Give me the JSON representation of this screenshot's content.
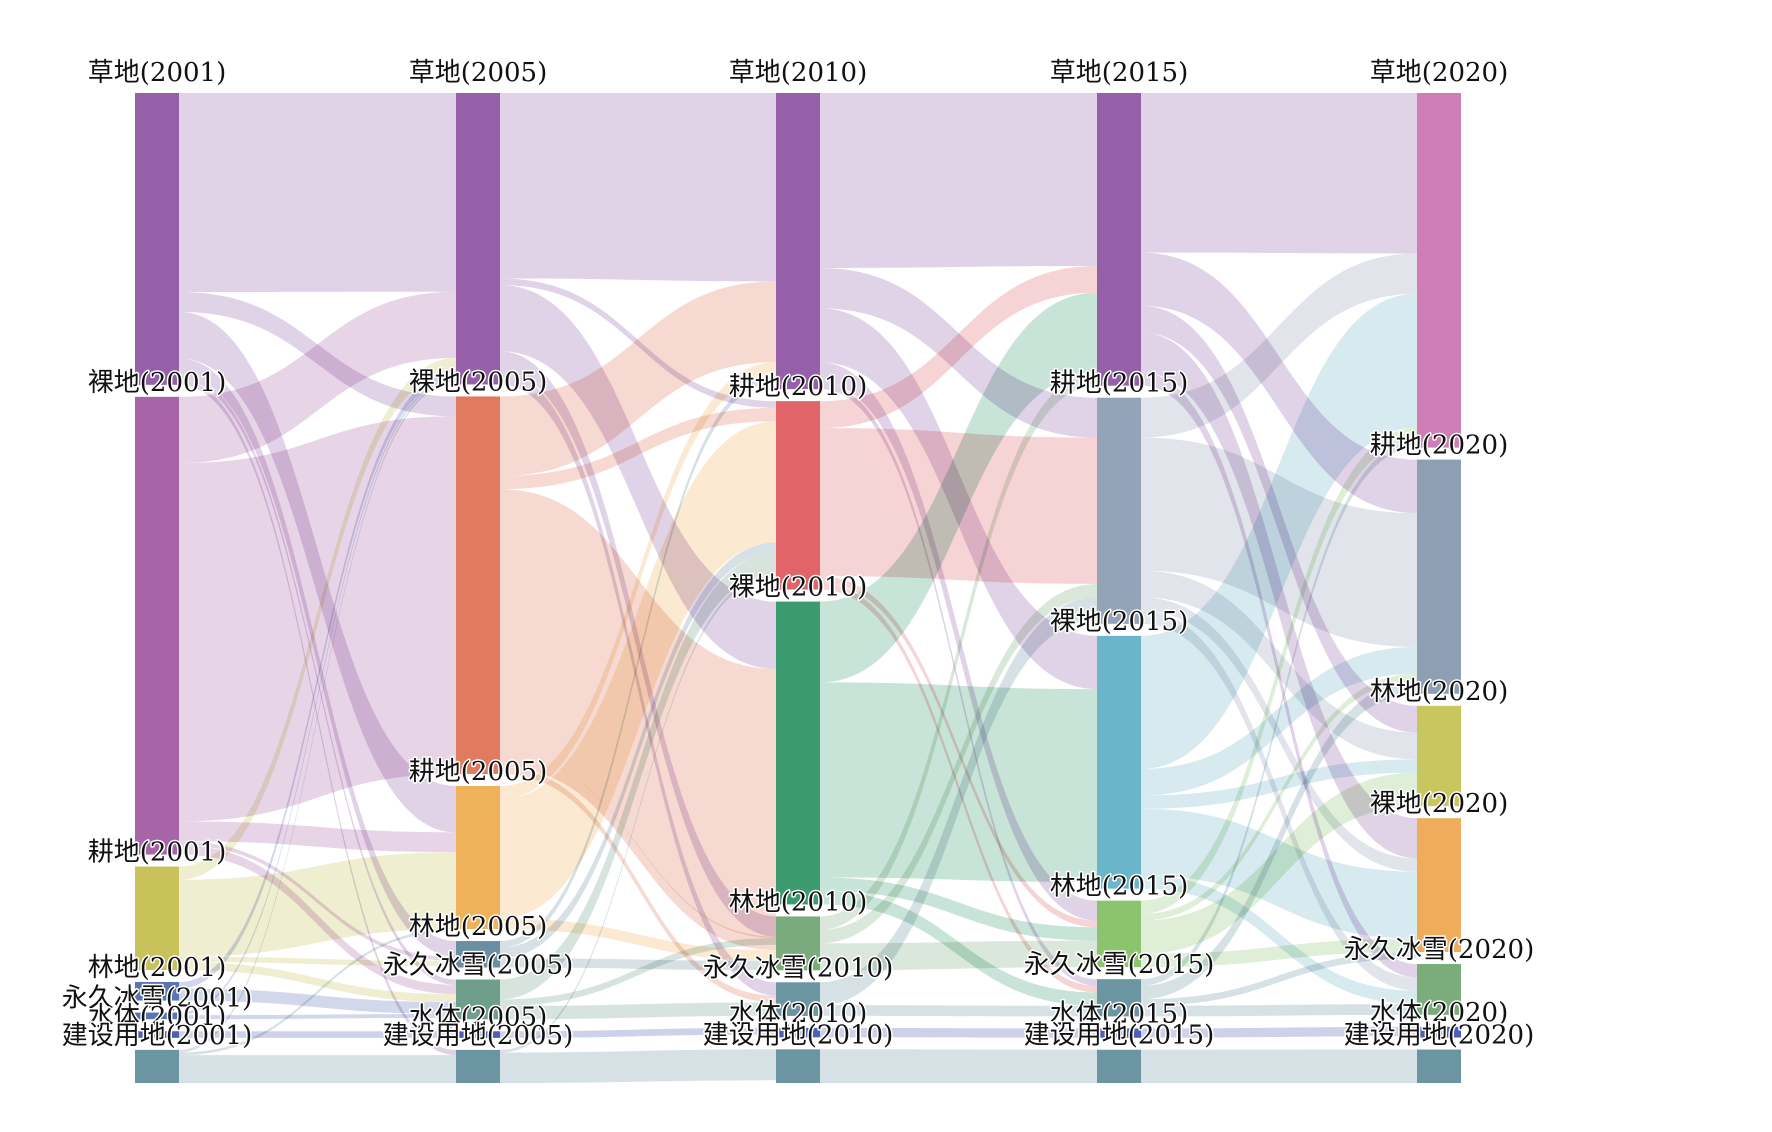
{
  "chart_data": {
    "type": "sankey",
    "columns": [
      "2001",
      "2005",
      "2010",
      "2015",
      "2020"
    ],
    "categories": [
      "草地",
      "裸地",
      "耕地",
      "林地",
      "永久冰雪",
      "水体",
      "建设用地"
    ],
    "labels": [
      [
        "草地(2001)",
        "裸地(2001)",
        "耕地(2001)",
        "林地(2001)",
        "永久冰雪(2001)",
        "水体(2001)",
        "建设用地(2001)"
      ],
      [
        "草地(2005)",
        "裸地(2005)",
        "耕地(2005)",
        "林地(2005)",
        "永久冰雪(2005)",
        "水体(2005)",
        "建设用地(2005)"
      ],
      [
        "草地(2010)",
        "耕地(2010)",
        "裸地(2010)",
        "林地(2010)",
        "永久冰雪(2010)",
        "水体(2010)",
        "建设用地(2010)"
      ],
      [
        "草地(2015)",
        "耕地(2015)",
        "裸地(2015)",
        "林地(2015)",
        "永久冰雪(2015)",
        "水体(2015)",
        "建设用地(2015)"
      ],
      [
        "草地(2020)",
        "耕地(2020)",
        "林地(2020)",
        "裸地(2020)",
        "永久冰雪(2020)",
        "水体(2020)",
        "建设用地(2020)"
      ]
    ],
    "node_colors": [
      [
        "#9560a8",
        "#a864a8",
        "#c9c25a",
        "#5a74b8",
        "#5a74b8",
        "#4a5fb5",
        "#6c95a2"
      ],
      [
        "#9560a8",
        "#e07b5f",
        "#efb25a",
        "#6a8fa3",
        "#6f9f8a",
        "#4a5fb5",
        "#6c95a2"
      ],
      [
        "#9560a8",
        "#e06468",
        "#3b9a6e",
        "#7aab7e",
        "#6c95a2",
        "#4a5fb5",
        "#6c95a2"
      ],
      [
        "#9560a8",
        "#95a3b8",
        "#6bb5ca",
        "#8cc46e",
        "#6c95a2",
        "#4a5fb5",
        "#6c95a2"
      ],
      [
        "#cf7db5",
        "#8f9fb3",
        "#c8c65f",
        "#efac5a",
        "#7bad7b",
        "#4a5fb5",
        "#6c95a2"
      ]
    ],
    "values": [
      [
        22.0,
        34.5,
        7.8,
        1.4,
        0.5,
        0.5,
        2.5
      ],
      [
        22.0,
        28.5,
        10.8,
        2.0,
        3.0,
        0.5,
        2.5
      ],
      [
        22.0,
        14.0,
        22.5,
        4.0,
        2.5,
        0.7,
        2.5
      ],
      [
        22.0,
        17.0,
        19.0,
        5.0,
        2.8,
        0.7,
        2.5
      ],
      [
        26.5,
        17.5,
        7.5,
        10.0,
        3.8,
        0.8,
        2.5
      ]
    ],
    "flows": [
      [
        {
          "from": "草地(2001)",
          "to": "草地(2005)",
          "value": 15.0
        },
        {
          "from": "草地(2001)",
          "to": "裸地(2005)",
          "value": 1.5
        },
        {
          "from": "草地(2001)",
          "to": "耕地(2005)",
          "value": 3.5
        },
        {
          "from": "草地(2001)",
          "to": "林地(2005)",
          "value": 1.2
        },
        {
          "from": "草地(2001)",
          "to": "永久冰雪(2005)",
          "value": 0.4
        },
        {
          "from": "草地(2001)",
          "to": "建设用地(2005)",
          "value": 0.4
        },
        {
          "from": "裸地(2001)",
          "to": "草地(2005)",
          "value": 5.0
        },
        {
          "from": "裸地(2001)",
          "to": "裸地(2005)",
          "value": 27.0
        },
        {
          "from": "裸地(2001)",
          "to": "耕地(2005)",
          "value": 1.5
        },
        {
          "from": "裸地(2001)",
          "to": "林地(2005)",
          "value": 0.3
        },
        {
          "from": "裸地(2001)",
          "to": "永久冰雪(2005)",
          "value": 0.7
        },
        {
          "from": "耕地(2001)",
          "to": "草地(2005)",
          "value": 1.0
        },
        {
          "from": "耕地(2001)",
          "to": "耕地(2005)",
          "value": 5.8
        },
        {
          "from": "耕地(2001)",
          "to": "林地(2005)",
          "value": 0.4
        },
        {
          "from": "耕地(2001)",
          "to": "永久冰雪(2005)",
          "value": 0.6
        },
        {
          "from": "林地(2001)",
          "to": "草地(2005)",
          "value": 0.5
        },
        {
          "from": "林地(2001)",
          "to": "永久冰雪(2005)",
          "value": 0.9
        },
        {
          "from": "永久冰雪(2001)",
          "to": "草地(2005)",
          "value": 0.2
        },
        {
          "from": "永久冰雪(2001)",
          "to": "永久冰雪(2005)",
          "value": 0.3
        },
        {
          "from": "水体(2001)",
          "to": "水体(2005)",
          "value": 0.5
        },
        {
          "from": "建设用地(2001)",
          "to": "建设用地(2005)",
          "value": 2.1
        },
        {
          "from": "建设用地(2001)",
          "to": "耕地(2005)",
          "value": 0.2
        },
        {
          "from": "建设用地(2001)",
          "to": "草地(2005)",
          "value": 0.2
        }
      ],
      [
        {
          "from": "草地(2005)",
          "to": "草地(2010)",
          "value": 14.0
        },
        {
          "from": "草地(2005)",
          "to": "裸地(2010)",
          "value": 5.0
        },
        {
          "from": "草地(2005)",
          "to": "林地(2010)",
          "value": 1.5
        },
        {
          "from": "草地(2005)",
          "to": "永久冰雪(2010)",
          "value": 1.0
        },
        {
          "from": "草地(2005)",
          "to": "耕地(2010)",
          "value": 0.5
        },
        {
          "from": "裸地(2005)",
          "to": "草地(2010)",
          "value": 6.0
        },
        {
          "from": "裸地(2005)",
          "to": "耕地(2010)",
          "value": 1.0
        },
        {
          "from": "裸地(2005)",
          "to": "裸地(2010)",
          "value": 20.0
        },
        {
          "from": "裸地(2005)",
          "to": "林地(2010)",
          "value": 1.0
        },
        {
          "from": "裸地(2005)",
          "to": "永久冰雪(2010)",
          "value": 0.5
        },
        {
          "from": "耕地(2005)",
          "to": "草地(2010)",
          "value": 1.0
        },
        {
          "from": "耕地(2005)",
          "to": "耕地(2010)",
          "value": 9.0
        },
        {
          "from": "耕地(2005)",
          "to": "林地(2010)",
          "value": 0.8
        },
        {
          "from": "林地(2005)",
          "to": "草地(2010)",
          "value": 0.5
        },
        {
          "from": "林地(2005)",
          "to": "林地(2010)",
          "value": 0.7
        },
        {
          "from": "林地(2005)",
          "to": "耕地(2010)",
          "value": 0.8
        },
        {
          "from": "永久冰雪(2005)",
          "to": "耕地(2010)",
          "value": 1.5
        },
        {
          "from": "永久冰雪(2005)",
          "to": "永久冰雪(2010)",
          "value": 1.0
        },
        {
          "from": "永久冰雪(2005)",
          "to": "裸地(2010)",
          "value": 0.5
        },
        {
          "from": "水体(2005)",
          "to": "水体(2010)",
          "value": 0.5
        },
        {
          "from": "建设用地(2005)",
          "to": "建设用地(2010)",
          "value": 2.3
        },
        {
          "from": "建设用地(2005)",
          "to": "耕地(2010)",
          "value": 0.2
        }
      ],
      [
        {
          "from": "草地(2010)",
          "to": "草地(2015)",
          "value": 13.0
        },
        {
          "from": "草地(2010)",
          "to": "耕地(2015)",
          "value": 3.0
        },
        {
          "from": "草地(2010)",
          "to": "裸地(2015)",
          "value": 4.0
        },
        {
          "from": "草地(2010)",
          "to": "林地(2015)",
          "value": 1.5
        },
        {
          "from": "草地(2010)",
          "to": "永久冰雪(2015)",
          "value": 0.5
        },
        {
          "from": "耕地(2010)",
          "to": "草地(2015)",
          "value": 2.0
        },
        {
          "from": "耕地(2010)",
          "to": "耕地(2015)",
          "value": 11.0
        },
        {
          "from": "耕地(2010)",
          "to": "林地(2015)",
          "value": 0.5
        },
        {
          "from": "耕地(2010)",
          "to": "永久冰雪(2015)",
          "value": 0.5
        },
        {
          "from": "裸地(2010)",
          "to": "草地(2015)",
          "value": 6.0
        },
        {
          "from": "裸地(2010)",
          "to": "裸地(2015)",
          "value": 14.5
        },
        {
          "from": "裸地(2010)",
          "to": "林地(2015)",
          "value": 1.0
        },
        {
          "from": "裸地(2010)",
          "to": "永久冰雪(2015)",
          "value": 1.0
        },
        {
          "from": "林地(2010)",
          "to": "草地(2015)",
          "value": 1.0
        },
        {
          "from": "林地(2010)",
          "to": "林地(2015)",
          "value": 2.0
        },
        {
          "from": "林地(2010)",
          "to": "耕地(2015)",
          "value": 1.0
        },
        {
          "from": "永久冰雪(2010)",
          "to": "永久冰雪(2015)",
          "value": 0.8
        },
        {
          "from": "永久冰雪(2010)",
          "to": "耕地(2015)",
          "value": 1.7
        },
        {
          "from": "水体(2010)",
          "to": "水体(2015)",
          "value": 0.7
        },
        {
          "from": "建设用地(2010)",
          "to": "建设用地(2015)",
          "value": 2.5
        }
      ],
      [
        {
          "from": "草地(2015)",
          "to": "草地(2020)",
          "value": 12.0
        },
        {
          "from": "草地(2015)",
          "to": "耕地(2020)",
          "value": 4.0
        },
        {
          "from": "草地(2015)",
          "to": "裸地(2020)",
          "value": 3.0
        },
        {
          "from": "草地(2015)",
          "to": "林地(2020)",
          "value": 2.0
        },
        {
          "from": "草地(2015)",
          "to": "永久冰雪(2020)",
          "value": 1.0
        },
        {
          "from": "耕地(2015)",
          "to": "草地(2020)",
          "value": 3.0
        },
        {
          "from": "耕地(2015)",
          "to": "耕地(2020)",
          "value": 10.0
        },
        {
          "from": "耕地(2015)",
          "to": "林地(2020)",
          "value": 2.0
        },
        {
          "from": "耕地(2015)",
          "to": "裸地(2020)",
          "value": 1.0
        },
        {
          "from": "耕地(2015)",
          "to": "永久冰雪(2020)",
          "value": 1.0
        },
        {
          "from": "裸地(2015)",
          "to": "草地(2020)",
          "value": 10.0
        },
        {
          "from": "裸地(2015)",
          "to": "耕地(2020)",
          "value": 2.0
        },
        {
          "from": "裸地(2015)",
          "to": "裸地(2020)",
          "value": 5.0
        },
        {
          "from": "裸地(2015)",
          "to": "永久冰雪(2020)",
          "value": 1.0
        },
        {
          "from": "裸地(2015)",
          "to": "林地(2020)",
          "value": 1.0
        },
        {
          "from": "林地(2015)",
          "to": "林地(2020)",
          "value": 2.5
        },
        {
          "from": "林地(2015)",
          "to": "草地(2020)",
          "value": 1.0
        },
        {
          "from": "林地(2015)",
          "to": "裸地(2020)",
          "value": 1.0
        },
        {
          "from": "林地(2015)",
          "to": "耕地(2020)",
          "value": 0.5
        },
        {
          "from": "永久冰雪(2015)",
          "to": "永久冰雪(2020)",
          "value": 0.8
        },
        {
          "from": "永久冰雪(2015)",
          "to": "耕地(2020)",
          "value": 1.0
        },
        {
          "from": "永久冰雪(2015)",
          "to": "草地(2020)",
          "value": 0.5
        },
        {
          "from": "永久冰雪(2015)",
          "to": "裸地(2020)",
          "value": 0.5
        },
        {
          "from": "水体(2015)",
          "to": "水体(2020)",
          "value": 0.7
        },
        {
          "from": "建设用地(2015)",
          "to": "建设用地(2020)",
          "value": 2.5
        }
      ]
    ]
  }
}
